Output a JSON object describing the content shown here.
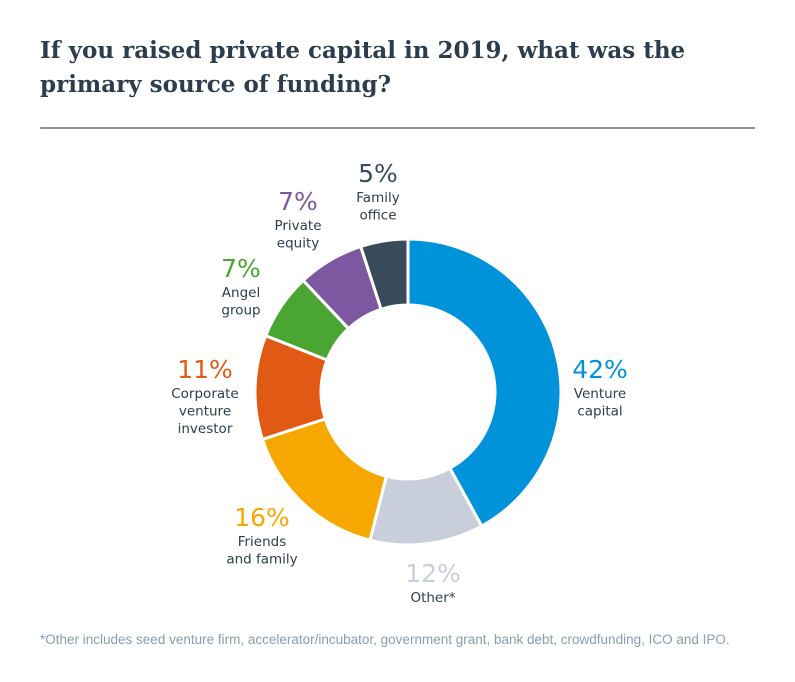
{
  "title": "If you raised private capital in 2019, what was the primary source of funding?",
  "footnote": "*Other includes seed venture firm, accelerator/incubator, government grant, bank debt, crowdfunding, ICO and IPO.",
  "chart_data": {
    "type": "pie",
    "variant": "donut",
    "title": "If you raised private capital in 2019, what was the primary source of funding?",
    "unit": "%",
    "slices": [
      {
        "label": "Venture capital",
        "lines": [
          "Venture",
          "capital"
        ],
        "value": 42,
        "pct_label": "42%",
        "color": "#0093d9"
      },
      {
        "label": "Other*",
        "lines": [
          "Other*"
        ],
        "value": 12,
        "pct_label": "12%",
        "color": "#c8cfdb"
      },
      {
        "label": "Friends and family",
        "lines": [
          "Friends",
          "and family"
        ],
        "value": 16,
        "pct_label": "16%",
        "color": "#f6a800"
      },
      {
        "label": "Corporate venture investor",
        "lines": [
          "Corporate",
          "venture",
          "investor"
        ],
        "value": 11,
        "pct_label": "11%",
        "color": "#e05a15"
      },
      {
        "label": "Angel group",
        "lines": [
          "Angel",
          "group"
        ],
        "value": 7,
        "pct_label": "7%",
        "color": "#4aa532"
      },
      {
        "label": "Private equity",
        "lines": [
          "Private",
          "equity"
        ],
        "value": 7,
        "pct_label": "7%",
        "color": "#7d58a0"
      },
      {
        "label": "Family office",
        "lines": [
          "Family",
          "office"
        ],
        "value": 5,
        "pct_label": "5%",
        "color": "#394a5a"
      }
    ],
    "start": "top",
    "direction": "clockwise",
    "legend": "none"
  }
}
